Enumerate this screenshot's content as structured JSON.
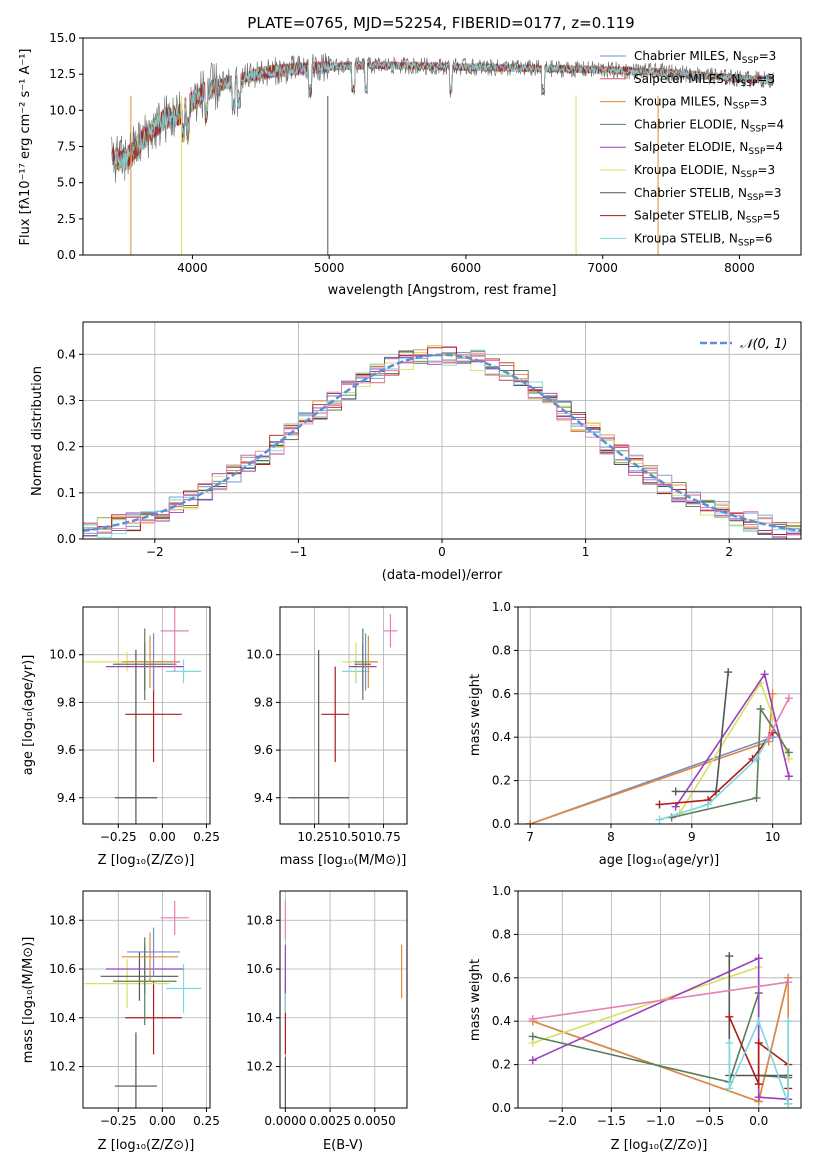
{
  "chart_data": [
    {
      "id": "spectrum",
      "type": "line",
      "title": "PLATE=0765, MJD=52254, FIBERID=0177, z=0.119",
      "xlabel": "wavelength [Angstrom, rest frame]",
      "ylabel": "Flux [fλ10⁻¹⁷ erg cm⁻² s⁻¹ A⁻¹]",
      "xlim": [
        3200,
        8450
      ],
      "ylim": [
        0,
        15
      ],
      "xticks": [
        4000,
        5000,
        6000,
        7000,
        8000
      ],
      "yticks": [
        0.0,
        2.5,
        5.0,
        7.5,
        10.0,
        12.5,
        15.0
      ],
      "grid": false,
      "legend_position": "top-right",
      "continuum": {
        "x": [
          3410,
          3500,
          3600,
          3700,
          3800,
          3900,
          4000,
          4100,
          4200,
          4300,
          4400,
          4500,
          4600,
          4800,
          5000,
          5200,
          5500,
          6000,
          6500,
          7000,
          7500,
          8000,
          8250
        ],
        "y": [
          6.8,
          6.5,
          7.6,
          8.6,
          9.4,
          9.7,
          10.6,
          11.4,
          11.7,
          12.0,
          12.3,
          12.6,
          12.7,
          12.9,
          13.0,
          13.1,
          13.1,
          13.0,
          12.9,
          12.8,
          12.6,
          12.2,
          12.1
        ]
      },
      "series": [
        {
          "name": "Chabrier MILES, N_SSP=3",
          "color": "#6f8ecf"
        },
        {
          "name": "Salpeter MILES, N_SSP=3",
          "color": "#d4586a"
        },
        {
          "name": "Kroupa MILES, N_SSP=3",
          "color": "#e08a3a"
        },
        {
          "name": "Chabrier ELODIE, N_SSP=4",
          "color": "#5a7f5a"
        },
        {
          "name": "Salpeter ELODIE, N_SSP=4",
          "color": "#9b3fbf"
        },
        {
          "name": "Kroupa ELODIE, N_SSP=3",
          "color": "#d8e060"
        },
        {
          "name": "Chabrier STELIB, N_SSP=3",
          "color": "#555555"
        },
        {
          "name": "Salpeter STELIB, N_SSP=5",
          "color": "#b01a1a"
        },
        {
          "name": "Kroupa STELIB, N_SSP=6",
          "color": "#7fd8e0"
        }
      ]
    },
    {
      "id": "residuals",
      "type": "line",
      "xlabel": "(data-model)/error",
      "ylabel": "Normed distribution",
      "xlim": [
        -2.5,
        2.5
      ],
      "ylim": [
        0,
        0.47
      ],
      "xticks": [
        -2,
        -1,
        0,
        1,
        2
      ],
      "yticks": [
        0.0,
        0.1,
        0.2,
        0.3,
        0.4
      ],
      "grid": true,
      "legend_position": "top-right",
      "gaussian_label": "𝒩(0, 1)",
      "gaussian_color": "#5b8fd6",
      "bin_width": 0.1
    },
    {
      "id": "age-vs-Z",
      "type": "scatter",
      "xlabel": "Z [log₁₀(Z/Z⊙)]",
      "ylabel": "age  [log₁₀(age/yr)]",
      "xlim": [
        -0.45,
        0.27
      ],
      "ylim": [
        9.29,
        10.2
      ],
      "xticks": [
        -0.25,
        0.0,
        0.25
      ],
      "yticks": [
        9.4,
        9.6,
        9.8,
        10.0
      ],
      "grid": true,
      "points": [
        {
          "x": -0.15,
          "xerr": 0.12,
          "y": 9.4,
          "yerr": 0.62,
          "color": "#555555"
        },
        {
          "x": -0.05,
          "xerr": 0.16,
          "y": 9.75,
          "yerr": 0.2,
          "color": "#b01a1a"
        },
        {
          "x": 0.12,
          "xerr": 0.1,
          "y": 9.93,
          "yerr": 0.05,
          "color": "#7fd8e0"
        },
        {
          "x": -0.2,
          "xerr": 0.24,
          "y": 9.97,
          "yerr": 0.04,
          "color": "#d8e060"
        },
        {
          "x": -0.1,
          "xerr": 0.22,
          "y": 9.95,
          "yerr": 0.1,
          "color": "#9b3fbf"
        },
        {
          "x": -0.05,
          "xerr": 0.15,
          "y": 9.97,
          "yerr": 0.12,
          "color": "#6f8ecf"
        },
        {
          "x": -0.07,
          "xerr": 0.16,
          "y": 9.97,
          "yerr": 0.11,
          "color": "#e08a3a"
        },
        {
          "x": -0.1,
          "xerr": 0.18,
          "y": 9.96,
          "yerr": 0.15,
          "color": "#5a7f5a"
        },
        {
          "x": 0.07,
          "xerr": 0.08,
          "y": 10.1,
          "yerr": 0.17,
          "color": "#e87fb7"
        }
      ]
    },
    {
      "id": "age-vs-mass",
      "type": "scatter",
      "xlabel": "mass [log₁₀(M/M⊙)]",
      "ylabel": "",
      "xlim": [
        10.0,
        10.92
      ],
      "ylim": [
        9.29,
        10.2
      ],
      "xticks": [
        10.25,
        10.5,
        10.75
      ],
      "yticks": [
        9.4,
        9.6,
        9.8,
        10.0
      ],
      "grid": true,
      "points": [
        {
          "x": 10.28,
          "xerr": 0.22,
          "y": 9.4,
          "yerr": 0.62,
          "color": "#555555"
        },
        {
          "x": 10.4,
          "xerr": 0.1,
          "y": 9.75,
          "yerr": 0.2,
          "color": "#b01a1a"
        },
        {
          "x": 10.55,
          "xerr": 0.1,
          "y": 9.93,
          "yerr": 0.05,
          "color": "#7fd8e0"
        },
        {
          "x": 10.55,
          "xerr": 0.1,
          "y": 9.97,
          "yerr": 0.08,
          "color": "#d8e060"
        },
        {
          "x": 10.6,
          "xerr": 0.1,
          "y": 9.95,
          "yerr": 0.1,
          "color": "#9b3fbf"
        },
        {
          "x": 10.62,
          "xerr": 0.08,
          "y": 9.97,
          "yerr": 0.12,
          "color": "#6f8ecf"
        },
        {
          "x": 10.64,
          "xerr": 0.07,
          "y": 9.97,
          "yerr": 0.11,
          "color": "#e08a3a"
        },
        {
          "x": 10.6,
          "xerr": 0.06,
          "y": 9.96,
          "yerr": 0.15,
          "color": "#5a7f5a"
        },
        {
          "x": 10.8,
          "xerr": 0.05,
          "y": 10.1,
          "yerr": 0.07,
          "color": "#e87fb7"
        }
      ]
    },
    {
      "id": "mass-weight-vs-age",
      "type": "line",
      "xlabel": "age  [log₁₀(age/yr)]",
      "ylabel": "mass weight",
      "xlim": [
        6.85,
        10.35
      ],
      "ylim": [
        0,
        1.0
      ],
      "xticks": [
        7,
        8,
        9,
        10
      ],
      "yticks": [
        0.0,
        0.2,
        0.4,
        0.6,
        0.8,
        1.0
      ],
      "grid": true,
      "series": [
        {
          "color": "#6f8ecf",
          "x": [
            7.0,
            10.0
          ],
          "y": [
            0.0,
            0.4
          ]
        },
        {
          "color": "#e08a3a",
          "x": [
            7.0,
            9.95,
            10.0
          ],
          "y": [
            0.0,
            0.38,
            0.6
          ]
        },
        {
          "color": "#d8e060",
          "x": [
            8.85,
            9.85,
            10.2
          ],
          "y": [
            0.05,
            0.65,
            0.3
          ]
        },
        {
          "color": "#5a7f5a",
          "x": [
            8.75,
            9.8,
            9.85,
            10.2
          ],
          "y": [
            0.03,
            0.12,
            0.53,
            0.33
          ]
        },
        {
          "color": "#9b3fbf",
          "x": [
            8.8,
            9.9,
            10.2
          ],
          "y": [
            0.08,
            0.69,
            0.22
          ]
        },
        {
          "color": "#555555",
          "x": [
            8.8,
            9.3,
            9.45
          ],
          "y": [
            0.15,
            0.15,
            0.7
          ]
        },
        {
          "color": "#b01a1a",
          "x": [
            8.6,
            9.2,
            9.75,
            9.95,
            10.0
          ],
          "y": [
            0.09,
            0.11,
            0.3,
            0.4,
            0.42
          ]
        },
        {
          "color": "#7fd8e0",
          "x": [
            8.6,
            9.2,
            9.8,
            9.95
          ],
          "y": [
            0.02,
            0.09,
            0.3,
            0.4
          ]
        },
        {
          "color": "#e87fb7",
          "x": [
            9.95,
            10.2
          ],
          "y": [
            0.4,
            0.58
          ]
        }
      ]
    },
    {
      "id": "mass-vs-Z",
      "type": "scatter",
      "xlabel": "Z [log₁₀(Z/Z⊙)]",
      "ylabel": "mass [log₁₀(M/M⊙)]",
      "xlim": [
        -0.45,
        0.27
      ],
      "ylim": [
        10.03,
        10.92
      ],
      "xticks": [
        -0.25,
        0.0,
        0.25
      ],
      "yticks": [
        10.2,
        10.4,
        10.6,
        10.8
      ],
      "grid": true,
      "points": [
        {
          "x": -0.15,
          "xerr": 0.12,
          "y": 10.12,
          "yerr": 0.22,
          "color": "#555555"
        },
        {
          "x": -0.05,
          "xerr": 0.16,
          "y": 10.4,
          "yerr": 0.15,
          "color": "#b01a1a"
        },
        {
          "x": 0.12,
          "xerr": 0.1,
          "y": 10.52,
          "yerr": 0.1,
          "color": "#7fd8e0"
        },
        {
          "x": -0.2,
          "xerr": 0.24,
          "y": 10.54,
          "yerr": 0.1,
          "color": "#d8e060"
        },
        {
          "x": -0.13,
          "xerr": 0.22,
          "y": 10.57,
          "yerr": 0.1,
          "color": "#555555"
        },
        {
          "x": -0.1,
          "xerr": 0.22,
          "y": 10.6,
          "yerr": 0.1,
          "color": "#9b3fbf"
        },
        {
          "x": -0.05,
          "xerr": 0.15,
          "y": 10.67,
          "yerr": 0.1,
          "color": "#6f8ecf"
        },
        {
          "x": -0.07,
          "xerr": 0.16,
          "y": 10.65,
          "yerr": 0.1,
          "color": "#e08a3a"
        },
        {
          "x": -0.1,
          "xerr": 0.18,
          "y": 10.55,
          "yerr": 0.18,
          "color": "#5a7f5a"
        },
        {
          "x": 0.07,
          "xerr": 0.08,
          "y": 10.81,
          "yerr": 0.07,
          "color": "#e87fb7"
        }
      ]
    },
    {
      "id": "mass-vs-EBV",
      "type": "scatter",
      "xlabel": "E(B-V)",
      "ylabel": "",
      "xlim": [
        -0.0003,
        0.0068
      ],
      "ylim": [
        10.03,
        10.92
      ],
      "xticks": [
        0.0,
        0.0025,
        0.005
      ],
      "yticks": [
        10.2,
        10.4,
        10.6,
        10.8
      ],
      "grid": true,
      "points": [
        {
          "x": 0.0,
          "xerr": 0,
          "y": 10.12,
          "yerr": 0.12,
          "color": "#555555"
        },
        {
          "x": 0.0,
          "xerr": 0,
          "y": 10.4,
          "yerr": 0.15,
          "color": "#b01a1a"
        },
        {
          "x": 0.0,
          "xerr": 0,
          "y": 10.52,
          "yerr": 0.1,
          "color": "#7fd8e0"
        },
        {
          "x": 0.0,
          "xerr": 0,
          "y": 10.6,
          "yerr": 0.1,
          "color": "#9b3fbf"
        },
        {
          "x": 0.0,
          "xerr": 0,
          "y": 10.8,
          "yerr": 0.08,
          "color": "#e87fb7"
        },
        {
          "x": 0.0065,
          "xerr": 0,
          "y": 10.59,
          "yerr": 0.11,
          "color": "#e08a3a"
        }
      ]
    },
    {
      "id": "mass-weight-vs-Z",
      "type": "line",
      "xlabel": "Z [log₁₀(Z/Z⊙)]",
      "ylabel": "mass weight",
      "xlim": [
        -2.45,
        0.43
      ],
      "ylim": [
        0,
        1.0
      ],
      "xticks": [
        -2.0,
        -1.5,
        -1.0,
        -0.5,
        0.0
      ],
      "yticks": [
        0.0,
        0.2,
        0.4,
        0.6,
        0.8,
        1.0
      ],
      "grid": true,
      "series": [
        {
          "color": "#6f8ecf",
          "x": [
            -2.3,
            0.0,
            0.3
          ],
          "y": [
            0.4,
            0.03,
            0.6
          ]
        },
        {
          "color": "#e08a3a",
          "x": [
            -2.3,
            0.0,
            0.3,
            0.3
          ],
          "y": [
            0.4,
            0.03,
            0.6,
            0.02
          ]
        },
        {
          "color": "#d8e060",
          "x": [
            -2.3,
            0.0,
            0.0
          ],
          "y": [
            0.3,
            0.65,
            0.05
          ]
        },
        {
          "color": "#5a7f5a",
          "x": [
            -2.3,
            -0.3,
            0.0,
            0.0,
            0.3
          ],
          "y": [
            0.33,
            0.12,
            0.53,
            0.15,
            0.14
          ]
        },
        {
          "color": "#9b3fbf",
          "x": [
            -2.3,
            0.0,
            0.0,
            0.3
          ],
          "y": [
            0.22,
            0.69,
            0.05,
            0.04
          ]
        },
        {
          "color": "#555555",
          "x": [
            -0.3,
            -0.3,
            0.3,
            0.3
          ],
          "y": [
            0.7,
            0.15,
            0.15,
            0.02
          ]
        },
        {
          "color": "#b01a1a",
          "x": [
            -0.3,
            0.0,
            0.0,
            0.3,
            0.3
          ],
          "y": [
            0.42,
            0.11,
            0.3,
            0.2,
            0.09
          ]
        },
        {
          "color": "#7fd8e0",
          "x": [
            -0.3,
            -0.3,
            0.0,
            0.3,
            0.3
          ],
          "y": [
            0.3,
            0.09,
            0.4,
            0.02,
            0.4
          ]
        },
        {
          "color": "#e87fb7",
          "x": [
            -2.3,
            0.3
          ],
          "y": [
            0.41,
            0.58
          ]
        }
      ]
    }
  ]
}
